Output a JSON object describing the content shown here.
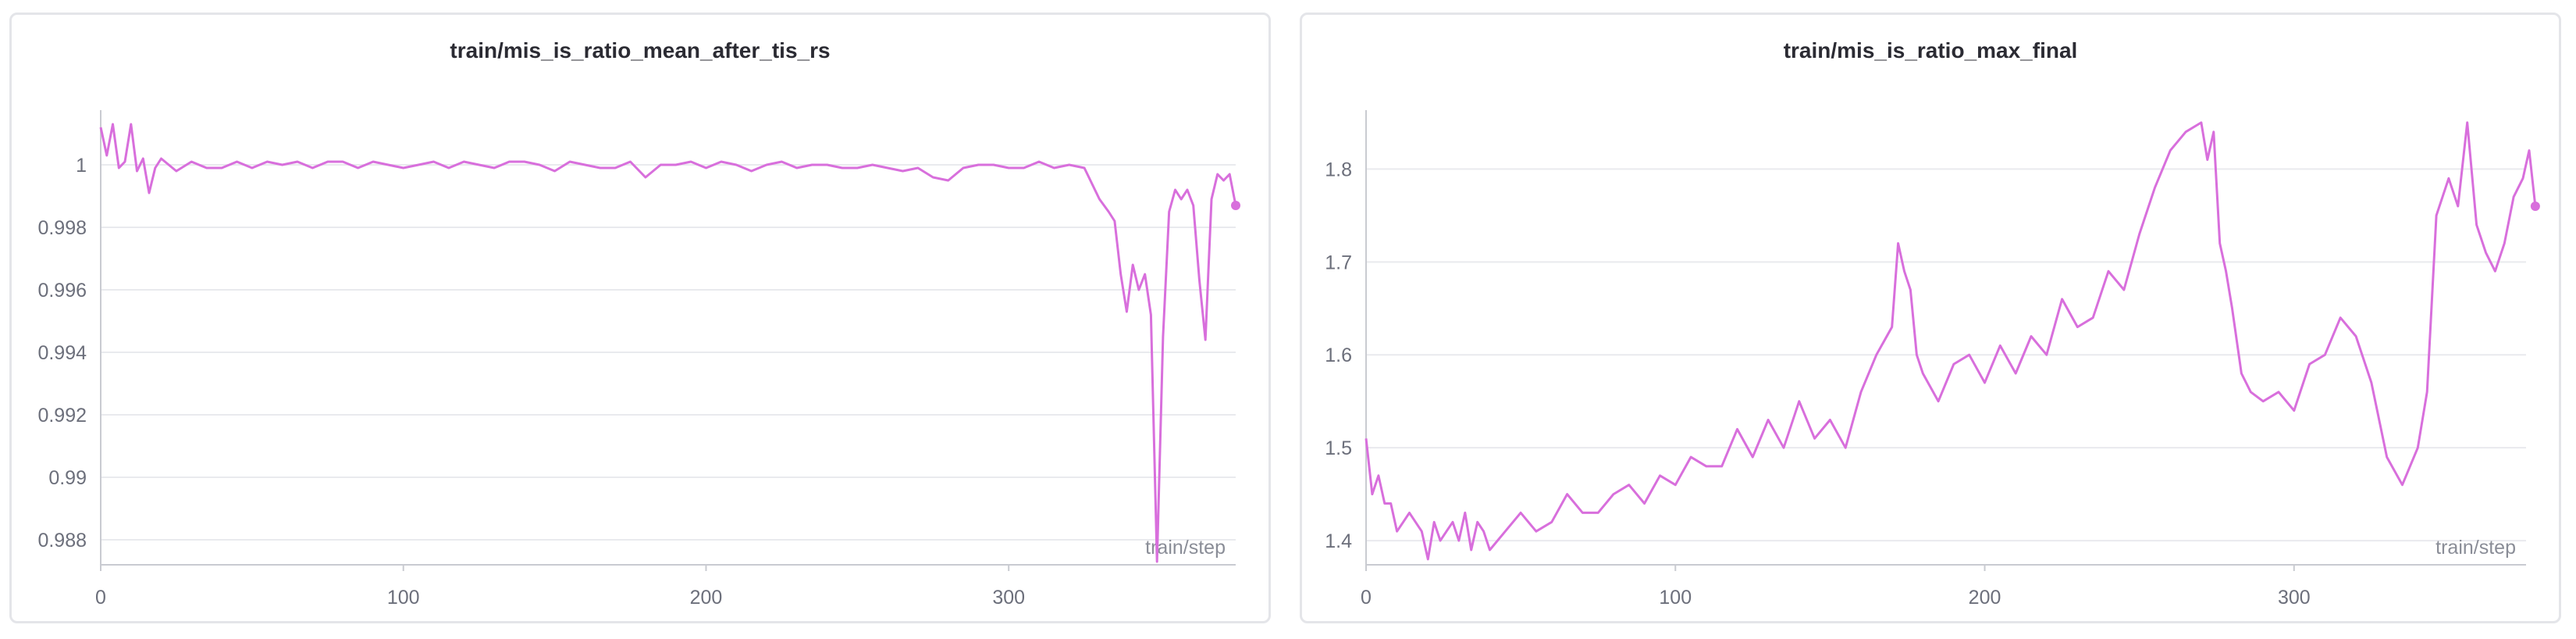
{
  "charts": [
    {
      "title": "train/mis_is_ratio_mean_after_tis_rs",
      "xlabel": "train/step",
      "x_ticks": [
        "0",
        "100",
        "200",
        "300"
      ],
      "y_ticks": [
        "0.988",
        "0.99",
        "0.992",
        "0.994",
        "0.996",
        "0.998",
        "1"
      ]
    },
    {
      "title": "train/mis_is_ratio_max_final",
      "xlabel": "train/step",
      "x_ticks": [
        "0",
        "100",
        "200",
        "300"
      ],
      "y_ticks": [
        "1.4",
        "1.5",
        "1.6",
        "1.7",
        "1.8"
      ]
    }
  ],
  "chart_data": [
    {
      "type": "line",
      "title": "train/mis_is_ratio_mean_after_tis_rs",
      "xlabel": "train/step",
      "ylabel": "",
      "xlim": [
        0,
        375
      ],
      "ylim": [
        0.9872,
        1.0015
      ],
      "grid": true,
      "color": "#d86fdc",
      "series": [
        {
          "x": [
            0,
            2,
            4,
            6,
            8,
            10,
            12,
            14,
            16,
            18,
            20,
            25,
            30,
            35,
            40,
            45,
            50,
            55,
            60,
            65,
            70,
            75,
            80,
            85,
            90,
            95,
            100,
            105,
            110,
            115,
            120,
            125,
            130,
            135,
            140,
            145,
            150,
            155,
            160,
            165,
            170,
            175,
            180,
            185,
            190,
            195,
            200,
            205,
            210,
            215,
            220,
            225,
            230,
            235,
            240,
            245,
            250,
            255,
            260,
            265,
            270,
            275,
            280,
            285,
            290,
            295,
            300,
            305,
            310,
            315,
            320,
            325,
            330,
            333,
            335,
            337,
            339,
            341,
            343,
            345,
            347,
            349,
            351,
            353,
            355,
            357,
            359,
            361,
            363,
            365,
            367,
            369,
            371,
            373,
            375
          ],
          "y": [
            1.0012,
            1.0003,
            1.0013,
            0.9999,
            1.0001,
            1.0013,
            0.9998,
            1.0002,
            0.9991,
            0.9999,
            1.0002,
            0.9998,
            1.0001,
            0.9999,
            0.9999,
            1.0001,
            0.9999,
            1.0001,
            1.0,
            1.0001,
            0.9999,
            1.0001,
            1.0001,
            0.9999,
            1.0001,
            1.0,
            0.9999,
            1.0,
            1.0001,
            0.9999,
            1.0001,
            1.0,
            0.9999,
            1.0001,
            1.0001,
            1.0,
            0.9998,
            1.0001,
            1.0,
            0.9999,
            0.9999,
            1.0001,
            0.9996,
            1.0,
            1.0,
            1.0001,
            0.9999,
            1.0001,
            1.0,
            0.9998,
            1.0,
            1.0001,
            0.9999,
            1.0,
            1.0,
            0.9999,
            0.9999,
            1.0,
            0.9999,
            0.9998,
            0.9999,
            0.9996,
            0.9995,
            0.9999,
            1.0,
            1.0,
            0.9999,
            0.9999,
            1.0001,
            0.9999,
            1.0,
            0.9999,
            0.9989,
            0.9985,
            0.9982,
            0.9965,
            0.9953,
            0.9968,
            0.996,
            0.9965,
            0.9952,
            0.9873,
            0.9945,
            0.9985,
            0.9992,
            0.9989,
            0.9992,
            0.9987,
            0.9963,
            0.9944,
            0.9989,
            0.9997,
            0.9995,
            0.9997,
            0.9987
          ]
        }
      ]
    },
    {
      "type": "line",
      "title": "train/mis_is_ratio_max_final",
      "xlabel": "train/step",
      "ylabel": "",
      "xlim": [
        0,
        375
      ],
      "ylim": [
        1.374,
        1.855
      ],
      "grid": true,
      "color": "#d86fdc",
      "series": [
        {
          "x": [
            0,
            2,
            4,
            6,
            8,
            10,
            12,
            14,
            16,
            18,
            20,
            22,
            24,
            26,
            28,
            30,
            32,
            34,
            36,
            38,
            40,
            45,
            50,
            55,
            60,
            65,
            70,
            75,
            80,
            85,
            90,
            95,
            100,
            105,
            110,
            115,
            120,
            125,
            130,
            135,
            140,
            145,
            150,
            155,
            160,
            165,
            170,
            172,
            174,
            176,
            178,
            180,
            185,
            190,
            195,
            200,
            205,
            210,
            215,
            220,
            225,
            230,
            235,
            240,
            245,
            250,
            255,
            260,
            265,
            270,
            272,
            274,
            276,
            278,
            280,
            283,
            286,
            290,
            295,
            300,
            305,
            310,
            315,
            320,
            325,
            330,
            335,
            340,
            343,
            346,
            350,
            353,
            356,
            359,
            362,
            365,
            368,
            371,
            374,
            376,
            378
          ],
          "y": [
            1.51,
            1.45,
            1.47,
            1.44,
            1.44,
            1.41,
            1.42,
            1.43,
            1.42,
            1.41,
            1.38,
            1.42,
            1.4,
            1.41,
            1.42,
            1.4,
            1.43,
            1.39,
            1.42,
            1.41,
            1.39,
            1.41,
            1.43,
            1.41,
            1.42,
            1.45,
            1.43,
            1.43,
            1.45,
            1.46,
            1.44,
            1.47,
            1.46,
            1.49,
            1.48,
            1.48,
            1.52,
            1.49,
            1.53,
            1.5,
            1.55,
            1.51,
            1.53,
            1.5,
            1.56,
            1.6,
            1.63,
            1.72,
            1.69,
            1.67,
            1.6,
            1.58,
            1.55,
            1.59,
            1.6,
            1.57,
            1.61,
            1.58,
            1.62,
            1.6,
            1.66,
            1.63,
            1.64,
            1.69,
            1.67,
            1.73,
            1.78,
            1.82,
            1.84,
            1.85,
            1.81,
            1.84,
            1.72,
            1.69,
            1.65,
            1.58,
            1.56,
            1.55,
            1.56,
            1.54,
            1.59,
            1.6,
            1.64,
            1.62,
            1.57,
            1.49,
            1.46,
            1.5,
            1.56,
            1.75,
            1.79,
            1.76,
            1.85,
            1.74,
            1.71,
            1.69,
            1.72,
            1.77,
            1.79,
            1.82,
            1.76
          ]
        }
      ]
    }
  ]
}
